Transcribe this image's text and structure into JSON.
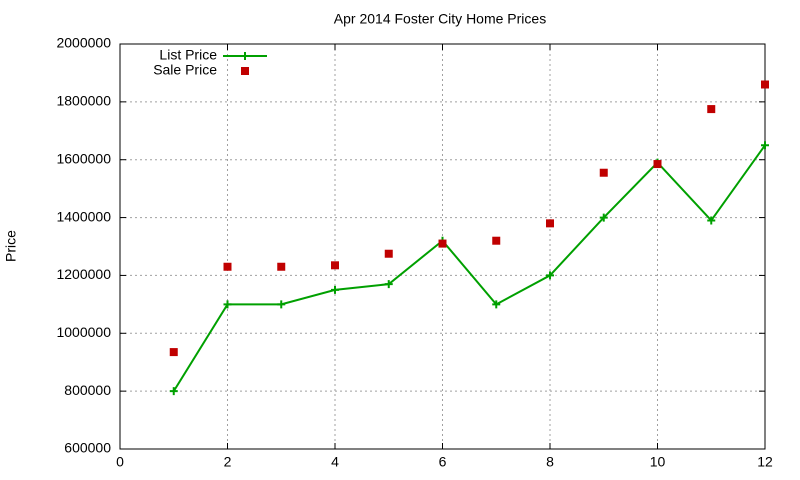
{
  "chart_data": {
    "type": "line",
    "title": "Apr 2014 Foster City Home Prices",
    "ylabel": "Price",
    "x": [
      1,
      2,
      3,
      4,
      5,
      6,
      7,
      8,
      9,
      10,
      11,
      12
    ],
    "series": [
      {
        "name": "List Price",
        "color": "#00a000",
        "marker": "plus",
        "line": true,
        "values": [
          800000,
          1100000,
          1100000,
          1150000,
          1170000,
          1320000,
          1100000,
          1200000,
          1400000,
          1590000,
          1390000,
          1650000
        ]
      },
      {
        "name": "Sale Price",
        "color": "#c00000",
        "marker": "square",
        "line": false,
        "values": [
          935000,
          1230000,
          1230000,
          1235000,
          1275000,
          1310000,
          1320000,
          1380000,
          1555000,
          1585000,
          1775000,
          1860000
        ]
      }
    ],
    "xlim": [
      0,
      12
    ],
    "xticks": [
      0,
      2,
      4,
      6,
      8,
      10,
      12
    ],
    "ylim": [
      600000,
      2000000
    ],
    "yticks": [
      600000,
      800000,
      1000000,
      1200000,
      1400000,
      1600000,
      1800000,
      2000000
    ],
    "grid": true,
    "legend": "top-left"
  }
}
